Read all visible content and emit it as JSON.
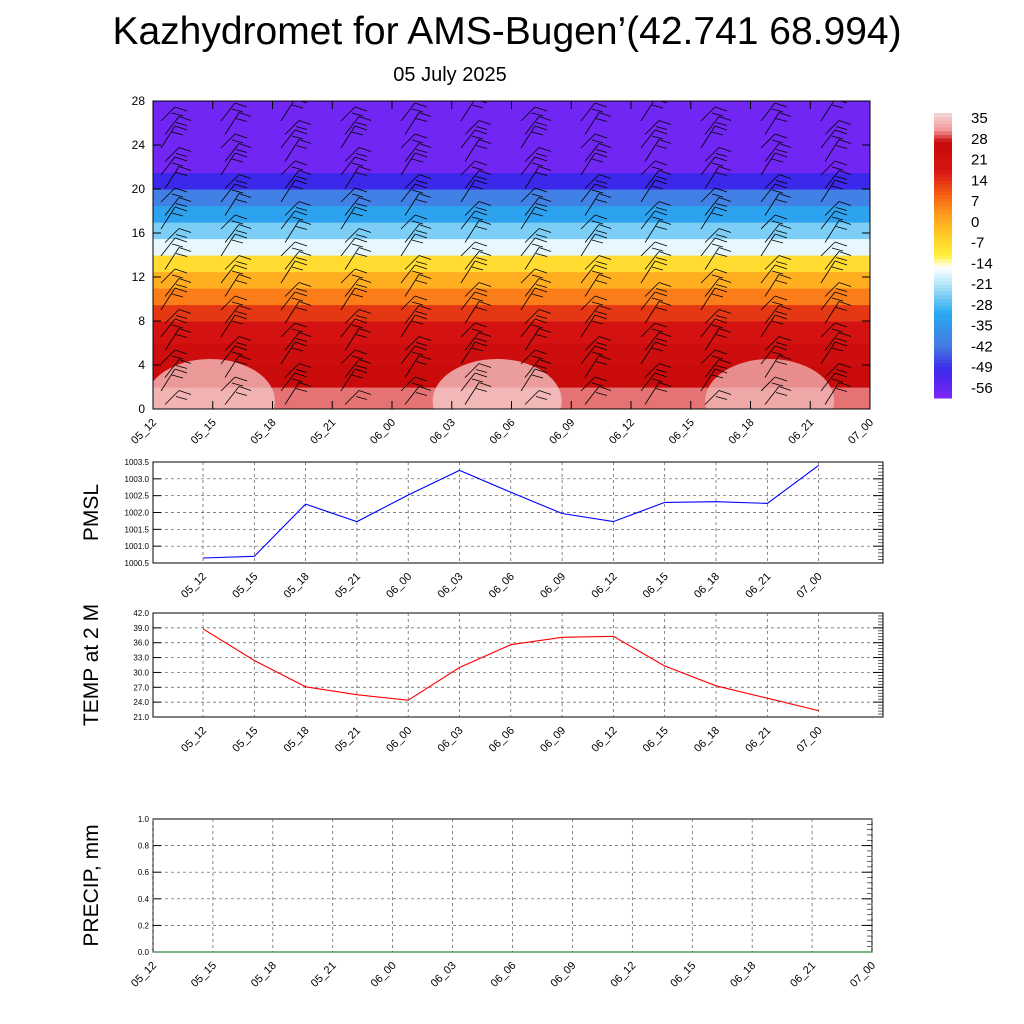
{
  "title": "Kazhydromet for AMS-Bugen’(42.741 68.994)",
  "subtitle": "05 July 2025",
  "time_labels": [
    "05_12",
    "05_15",
    "05_18",
    "05_21",
    "06_00",
    "06_03",
    "06_06",
    "06_09",
    "06_12",
    "06_15",
    "06_18",
    "06_21",
    "07_00"
  ],
  "colors": {
    "pmsl_line": "#0000ff",
    "temp_line": "#ff0000",
    "precip_line": "#006400",
    "grid": "#555555"
  },
  "chart_data": [
    {
      "id": "profile",
      "type": "heatmap",
      "title": "",
      "xlabel": "",
      "ylabel": "",
      "x": [
        "05_12",
        "05_15",
        "05_18",
        "05_21",
        "06_00",
        "06_03",
        "06_06",
        "06_09",
        "06_12",
        "06_15",
        "06_18",
        "06_21",
        "07_00"
      ],
      "y_ticks": [
        0,
        4,
        8,
        12,
        16,
        20,
        24,
        28
      ],
      "ylim": [
        0,
        28
      ],
      "colorbar_ticks": [
        35,
        28,
        21,
        14,
        7,
        0,
        -7,
        -14,
        -21,
        -28,
        -35,
        -42,
        -49,
        -56
      ],
      "colorbar_range": [
        -60,
        40
      ],
      "bands": [
        {
          "from": 0,
          "to": 2,
          "temp": 33
        },
        {
          "from": 2,
          "to": 4,
          "temp": 29
        },
        {
          "from": 4,
          "to": 6,
          "temp": 26
        },
        {
          "from": 6,
          "to": 8,
          "temp": 22
        },
        {
          "from": 8,
          "to": 9.5,
          "temp": 16
        },
        {
          "from": 9.5,
          "to": 11,
          "temp": 8
        },
        {
          "from": 11,
          "to": 12.5,
          "temp": 2
        },
        {
          "from": 12.5,
          "to": 14,
          "temp": -6
        },
        {
          "from": 14,
          "to": 15.5,
          "temp": -16
        },
        {
          "from": 15.5,
          "to": 17,
          "temp": -24
        },
        {
          "from": 17,
          "to": 18.5,
          "temp": -32
        },
        {
          "from": 18.5,
          "to": 20,
          "temp": -40
        },
        {
          "from": 20,
          "to": 21.5,
          "temp": -50
        },
        {
          "from": 21.5,
          "to": 28,
          "temp": -58
        }
      ],
      "wind_barbs": "present",
      "grid": false
    },
    {
      "id": "pmsl",
      "type": "line",
      "ylabel": "PMSL",
      "ylim": [
        1000.5,
        1003.5
      ],
      "y_ticks": [
        "1000.5",
        "1001.0",
        "1001.5",
        "1002.0",
        "1002.5",
        "1003.0",
        "1003.5"
      ],
      "x": [
        "05_12",
        "05_15",
        "05_18",
        "05_21",
        "06_00",
        "06_03",
        "06_06",
        "06_09",
        "06_12",
        "06_15",
        "06_18",
        "06_21",
        "07_00"
      ],
      "series": [
        {
          "values": [
            1000.65,
            1000.7,
            1002.25,
            1001.73,
            1002.52,
            1003.25,
            1002.6,
            1001.97,
            1001.73,
            1002.3,
            1002.32,
            1002.27,
            1003.4
          ]
        }
      ],
      "grid": true
    },
    {
      "id": "temp",
      "type": "line",
      "ylabel": "TEMP at 2 M",
      "ylim": [
        21.0,
        42.0
      ],
      "y_ticks": [
        "21.0",
        "24.0",
        "27.0",
        "30.0",
        "33.0",
        "36.0",
        "39.0",
        "42.0"
      ],
      "x": [
        "05_12",
        "05_15",
        "05_18",
        "05_21",
        "06_00",
        "06_03",
        "06_06",
        "06_09",
        "06_12",
        "06_15",
        "06_18",
        "06_21",
        "07_00"
      ],
      "series": [
        {
          "values": [
            38.8,
            32.4,
            27.1,
            25.5,
            24.4,
            31.0,
            35.6,
            37.1,
            37.3,
            31.3,
            27.3,
            24.8,
            22.3
          ]
        }
      ],
      "grid": true
    },
    {
      "id": "precip",
      "type": "line",
      "ylabel": "PRECIP, mm",
      "ylim": [
        0.0,
        1.0
      ],
      "y_ticks": [
        "0.0",
        "0.2",
        "0.4",
        "0.6",
        "0.8",
        "1.0"
      ],
      "x": [
        "05_12",
        "05_15",
        "05_18",
        "05_21",
        "06_00",
        "06_03",
        "06_06",
        "06_09",
        "06_12",
        "06_15",
        "06_18",
        "06_21",
        "07_00"
      ],
      "series": [
        {
          "values": [
            0,
            0,
            0,
            0,
            0,
            0,
            0,
            0,
            0,
            0,
            0,
            0,
            0
          ]
        }
      ],
      "grid": true
    }
  ]
}
